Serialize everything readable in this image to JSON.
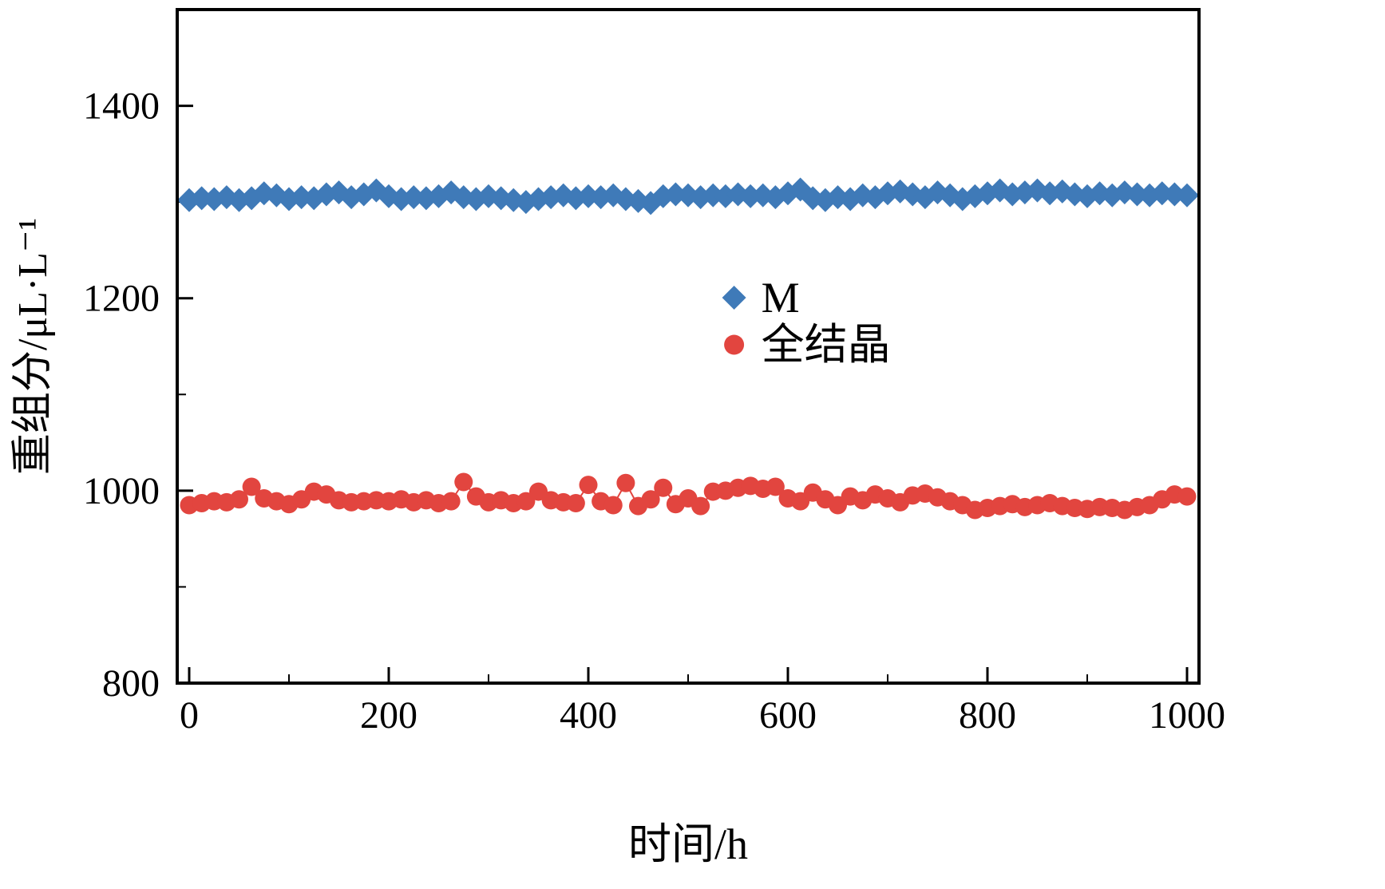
{
  "chart_data": {
    "type": "scatter",
    "title": "",
    "xlabel": "时间/h",
    "ylabel": "重组分/μL·L⁻¹",
    "xlim": [
      -12,
      1012
    ],
    "ylim": [
      800,
      1500
    ],
    "x_ticks": [
      0,
      200,
      400,
      600,
      800,
      1000
    ],
    "y_ticks": [
      800,
      1000,
      1200,
      1400
    ],
    "x_minor_step": 100,
    "y_minor_step": 100,
    "grid": false,
    "legend_position": "center",
    "x": [
      0,
      12.5,
      25,
      37.5,
      50,
      62.5,
      75,
      87.5,
      100,
      112.5,
      125,
      137.5,
      150,
      162.5,
      175,
      187.5,
      200,
      212.5,
      225,
      237.5,
      250,
      262.5,
      275,
      287.5,
      300,
      312.5,
      325,
      337.5,
      350,
      362.5,
      375,
      387.5,
      400,
      412.5,
      425,
      437.5,
      450,
      462.5,
      475,
      487.5,
      500,
      512.5,
      525,
      537.5,
      550,
      562.5,
      575,
      587.5,
      600,
      612.5,
      625,
      637.5,
      650,
      662.5,
      675,
      687.5,
      700,
      712.5,
      725,
      737.5,
      750,
      762.5,
      775,
      787.5,
      800,
      812.5,
      825,
      837.5,
      850,
      862.5,
      875,
      887.5,
      900,
      912.5,
      925,
      937.5,
      950,
      962.5,
      975,
      987.5,
      1000
    ],
    "series": [
      {
        "name": "M",
        "marker": "diamond",
        "color": "#3f7ab8",
        "values": [
          1302,
          1304,
          1303,
          1305,
          1302,
          1304,
          1309,
          1307,
          1303,
          1305,
          1304,
          1308,
          1310,
          1305,
          1308,
          1312,
          1306,
          1303,
          1305,
          1304,
          1306,
          1310,
          1305,
          1303,
          1306,
          1304,
          1302,
          1300,
          1303,
          1305,
          1307,
          1304,
          1306,
          1305,
          1307,
          1303,
          1301,
          1299,
          1306,
          1308,
          1307,
          1305,
          1307,
          1306,
          1308,
          1306,
          1307,
          1305,
          1309,
          1313,
          1304,
          1302,
          1305,
          1303,
          1307,
          1305,
          1309,
          1311,
          1308,
          1305,
          1310,
          1307,
          1303,
          1306,
          1309,
          1312,
          1308,
          1310,
          1312,
          1309,
          1311,
          1308,
          1306,
          1309,
          1307,
          1310,
          1308,
          1307,
          1309,
          1308,
          1307
        ]
      },
      {
        "name": "全结晶",
        "marker": "circle",
        "color": "#e2453f",
        "values": [
          985,
          987,
          989,
          988,
          991,
          1004,
          992,
          989,
          986,
          991,
          999,
          996,
          990,
          988,
          989,
          990,
          989,
          991,
          988,
          990,
          987,
          989,
          1009,
          994,
          988,
          990,
          987,
          989,
          999,
          990,
          988,
          987,
          1006,
          989,
          985,
          1008,
          984,
          991,
          1003,
          986,
          992,
          984,
          999,
          1000,
          1003,
          1005,
          1002,
          1004,
          992,
          989,
          998,
          991,
          985,
          994,
          990,
          996,
          992,
          988,
          995,
          997,
          993,
          989,
          985,
          980,
          982,
          984,
          986,
          983,
          985,
          987,
          984,
          982,
          981,
          983,
          982,
          980,
          983,
          985,
          991,
          996,
          994
        ]
      }
    ]
  },
  "legend": {
    "items": [
      {
        "label": "M",
        "marker": "diamond",
        "color": "#3f7ab8"
      },
      {
        "label": "全结晶",
        "marker": "circle",
        "color": "#e2453f"
      }
    ]
  },
  "colors": {
    "blue": "#3f7ab8",
    "red": "#e2453f",
    "axis": "#000000",
    "background": "#ffffff"
  }
}
